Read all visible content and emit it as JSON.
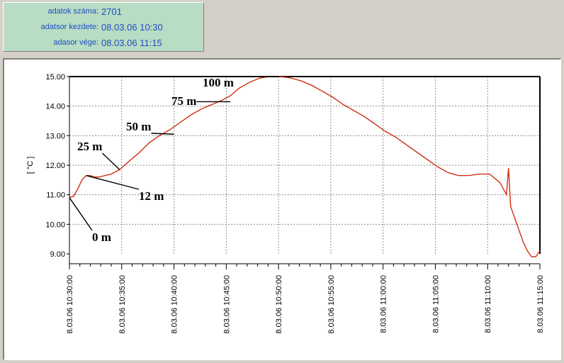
{
  "info": {
    "rows": [
      {
        "label": "adatok száma:",
        "value": "2701"
      },
      {
        "label": "adatsor kezdete:",
        "value": "08.03.06 10:30"
      },
      {
        "label": "adasor vége:",
        "value": "08.03.06 11:15"
      }
    ]
  },
  "chart_data": {
    "type": "line",
    "title": "",
    "xlabel": "",
    "ylabel": "[ °C ]",
    "x_unit": "minutes after 10:30",
    "xlim": [
      0,
      45
    ],
    "ylim": [
      9.0,
      15.0
    ],
    "y_ticks": [
      9.0,
      10.0,
      11.0,
      12.0,
      13.0,
      14.0,
      15.0
    ],
    "y_tick_labels": [
      "9.00",
      "10.00",
      "11.00",
      "12.00",
      "13.00",
      "14.00",
      "15.00"
    ],
    "x_ticks": [
      0,
      5,
      10,
      15,
      20,
      25,
      30,
      35,
      40,
      45
    ],
    "x_tick_labels": [
      "8.03.06 10:30:00",
      "8.03.06 10:35:00",
      "8.03.06 10:40:00",
      "8.03.06 10:45:00",
      "8.03.06 10:50:00",
      "8.03.06 10:55:00",
      "8.03.06 11:00:00",
      "8.03.06 11:05:00",
      "8.03.06 11:10:00",
      "8.03.06 11:15:00"
    ],
    "grid": true,
    "line_color": "#cc2200",
    "series": [
      {
        "x": [
          0,
          0.4,
          0.8,
          1.2,
          1.6,
          2.0,
          2.4,
          2.8,
          3.4,
          4.0,
          4.8,
          5.6,
          6.6,
          7.6,
          8.6,
          9.6,
          10.6,
          11.6,
          12.6,
          13.6,
          14.6,
          15.4,
          16.2,
          17.2,
          18.2,
          19.2,
          20.2,
          21.2,
          22.2,
          23.2,
          24.2,
          25.2,
          26.2,
          27.2,
          28.2,
          29.2,
          30.2,
          31.2,
          32.2,
          33.2,
          34.2,
          35.2,
          36.2,
          37.2,
          38.2,
          39.2,
          40.2,
          41.2,
          41.8,
          42.0,
          42.2,
          42.6,
          43.0,
          43.4,
          43.8,
          44.2,
          44.6,
          45.0
        ],
        "y": [
          10.9,
          10.95,
          11.2,
          11.5,
          11.65,
          11.65,
          11.6,
          11.6,
          11.65,
          11.7,
          11.85,
          12.1,
          12.4,
          12.75,
          13.0,
          13.2,
          13.45,
          13.7,
          13.9,
          14.05,
          14.2,
          14.35,
          14.6,
          14.8,
          14.95,
          15.0,
          15.0,
          14.95,
          14.85,
          14.7,
          14.5,
          14.3,
          14.05,
          13.85,
          13.65,
          13.4,
          13.15,
          12.95,
          12.7,
          12.45,
          12.2,
          11.95,
          11.75,
          11.65,
          11.65,
          11.7,
          11.7,
          11.4,
          11.0,
          11.9,
          10.6,
          10.2,
          9.8,
          9.4,
          9.1,
          8.9,
          8.9,
          9.1
        ]
      }
    ],
    "annotations": [
      {
        "text": "0 m",
        "x": 0.0,
        "y": 10.9
      },
      {
        "text": "12 m",
        "x": 1.6,
        "y": 11.65
      },
      {
        "text": "25 m",
        "x": 4.8,
        "y": 11.85
      },
      {
        "text": "50 m",
        "x": 10.0,
        "y": 13.05
      },
      {
        "text": "75 m",
        "x": 15.4,
        "y": 14.15
      },
      {
        "text": "100 m",
        "x": 20.0,
        "y": 15.0
      }
    ]
  }
}
